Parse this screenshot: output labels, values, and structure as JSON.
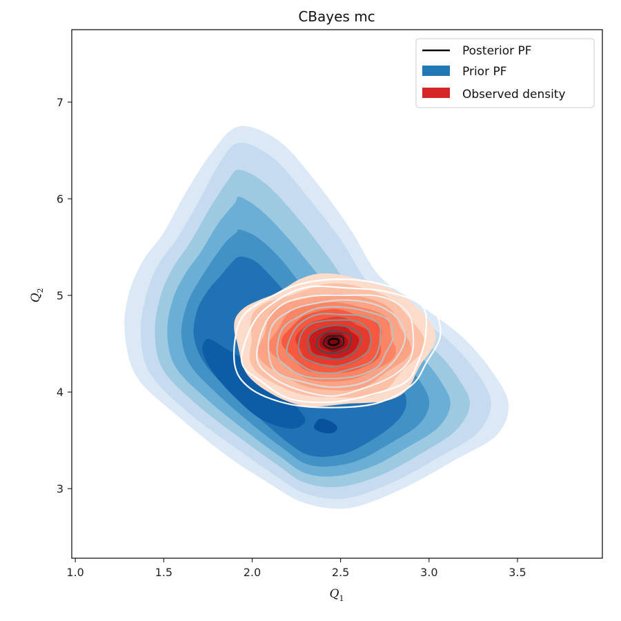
{
  "chart_data": {
    "type": "contour",
    "title": "CBayes mc",
    "xlabel": {
      "base": "Q",
      "sub": "1"
    },
    "ylabel": {
      "base": "Q",
      "sub": "2"
    },
    "xlim": [
      0.98,
      3.98
    ],
    "ylim": [
      2.28,
      7.75
    ],
    "xticks": [
      1.0,
      1.5,
      2.0,
      2.5,
      3.0,
      3.5
    ],
    "xtick_labels": [
      "1.0",
      "1.5",
      "2.0",
      "2.5",
      "3.0",
      "3.5"
    ],
    "yticks": [
      3,
      4,
      5,
      6,
      7
    ],
    "ytick_labels": [
      "3",
      "4",
      "5",
      "6",
      "7"
    ],
    "legend_position": "upper-right",
    "legend": [
      {
        "label": "Posterior PF",
        "kind": "line",
        "color": "#000000"
      },
      {
        "label": "Prior PF",
        "kind": "patch",
        "color": "#1f77b4"
      },
      {
        "label": "Observed density",
        "kind": "patch",
        "color": "#d62728"
      }
    ],
    "series": [
      {
        "name": "Prior PF",
        "style": "filled-contour",
        "colormap": "Blues",
        "colors": [
          "#dbe9f6",
          "#c6dbef",
          "#9ecae1",
          "#6baed6",
          "#4292c6",
          "#2171b5",
          "#0d5ca6",
          "#08519c"
        ],
        "levels": [
          [
            [
              1.93,
              6.75
            ],
            [
              2.15,
              6.6
            ],
            [
              2.35,
              6.2
            ],
            [
              2.55,
              5.7
            ],
            [
              2.72,
              5.2
            ],
            [
              2.95,
              4.9
            ],
            [
              3.2,
              4.55
            ],
            [
              3.38,
              4.15
            ],
            [
              3.45,
              3.85
            ],
            [
              3.38,
              3.55
            ],
            [
              3.15,
              3.3
            ],
            [
              2.85,
              3.0
            ],
            [
              2.55,
              2.8
            ],
            [
              2.3,
              2.85
            ],
            [
              2.1,
              3.05
            ],
            [
              1.85,
              3.35
            ],
            [
              1.58,
              3.75
            ],
            [
              1.35,
              4.15
            ],
            [
              1.28,
              4.6
            ],
            [
              1.3,
              5.0
            ],
            [
              1.38,
              5.35
            ],
            [
              1.5,
              5.65
            ],
            [
              1.62,
              6.05
            ],
            [
              1.78,
              6.5
            ]
          ],
          [
            [
              1.93,
              6.58
            ],
            [
              2.12,
              6.42
            ],
            [
              2.3,
              6.05
            ],
            [
              2.5,
              5.58
            ],
            [
              2.67,
              5.1
            ],
            [
              2.9,
              4.82
            ],
            [
              3.13,
              4.5
            ],
            [
              3.3,
              4.12
            ],
            [
              3.35,
              3.85
            ],
            [
              3.27,
              3.57
            ],
            [
              3.06,
              3.33
            ],
            [
              2.8,
              3.07
            ],
            [
              2.53,
              2.9
            ],
            [
              2.3,
              2.95
            ],
            [
              2.12,
              3.15
            ],
            [
              1.9,
              3.43
            ],
            [
              1.63,
              3.8
            ],
            [
              1.42,
              4.2
            ],
            [
              1.37,
              4.6
            ],
            [
              1.4,
              5.0
            ],
            [
              1.47,
              5.32
            ],
            [
              1.58,
              5.6
            ],
            [
              1.7,
              5.98
            ],
            [
              1.82,
              6.38
            ]
          ],
          [
            [
              1.93,
              6.3
            ],
            [
              2.08,
              6.15
            ],
            [
              2.25,
              5.82
            ],
            [
              2.43,
              5.4
            ],
            [
              2.6,
              4.97
            ],
            [
              2.82,
              4.7
            ],
            [
              3.04,
              4.42
            ],
            [
              3.18,
              4.1
            ],
            [
              3.23,
              3.86
            ],
            [
              3.15,
              3.6
            ],
            [
              2.97,
              3.38
            ],
            [
              2.74,
              3.15
            ],
            [
              2.5,
              3.02
            ],
            [
              2.3,
              3.06
            ],
            [
              2.14,
              3.25
            ],
            [
              1.95,
              3.5
            ],
            [
              1.7,
              3.85
            ],
            [
              1.5,
              4.22
            ],
            [
              1.45,
              4.6
            ],
            [
              1.48,
              4.98
            ],
            [
              1.55,
              5.28
            ],
            [
              1.65,
              5.55
            ],
            [
              1.76,
              5.9
            ],
            [
              1.86,
              6.18
            ]
          ],
          [
            [
              1.93,
              6.02
            ],
            [
              2.05,
              5.88
            ],
            [
              2.2,
              5.6
            ],
            [
              2.37,
              5.22
            ],
            [
              2.54,
              4.85
            ],
            [
              2.75,
              4.6
            ],
            [
              2.96,
              4.35
            ],
            [
              3.08,
              4.07
            ],
            [
              3.12,
              3.86
            ],
            [
              3.05,
              3.63
            ],
            [
              2.88,
              3.43
            ],
            [
              2.68,
              3.23
            ],
            [
              2.47,
              3.13
            ],
            [
              2.3,
              3.16
            ],
            [
              2.16,
              3.33
            ],
            [
              1.99,
              3.56
            ],
            [
              1.76,
              3.9
            ],
            [
              1.57,
              4.25
            ],
            [
              1.52,
              4.6
            ],
            [
              1.55,
              4.95
            ],
            [
              1.62,
              5.22
            ],
            [
              1.71,
              5.45
            ],
            [
              1.81,
              5.75
            ],
            [
              1.9,
              5.95
            ]
          ],
          [
            [
              1.93,
              5.68
            ],
            [
              2.03,
              5.6
            ],
            [
              2.16,
              5.38
            ],
            [
              2.31,
              5.04
            ],
            [
              2.47,
              4.74
            ],
            [
              2.67,
              4.52
            ],
            [
              2.86,
              4.3
            ],
            [
              2.97,
              4.05
            ],
            [
              3.0,
              3.86
            ],
            [
              2.94,
              3.66
            ],
            [
              2.79,
              3.48
            ],
            [
              2.61,
              3.3
            ],
            [
              2.44,
              3.23
            ],
            [
              2.3,
              3.26
            ],
            [
              2.18,
              3.41
            ],
            [
              2.03,
              3.62
            ],
            [
              1.82,
              3.95
            ],
            [
              1.65,
              4.28
            ],
            [
              1.6,
              4.6
            ],
            [
              1.63,
              4.9
            ],
            [
              1.69,
              5.12
            ],
            [
              1.77,
              5.35
            ],
            [
              1.85,
              5.55
            ],
            [
              1.91,
              5.65
            ]
          ],
          [
            [
              1.93,
              5.4
            ],
            [
              2.02,
              5.35
            ],
            [
              2.13,
              5.15
            ],
            [
              2.26,
              4.88
            ],
            [
              2.4,
              4.62
            ],
            [
              2.58,
              4.42
            ],
            [
              2.75,
              4.24
            ],
            [
              2.85,
              4.03
            ],
            [
              2.87,
              3.86
            ],
            [
              2.82,
              3.7
            ],
            [
              2.7,
              3.53
            ],
            [
              2.55,
              3.38
            ],
            [
              2.41,
              3.33
            ],
            [
              2.3,
              3.36
            ],
            [
              2.2,
              3.48
            ],
            [
              2.07,
              3.68
            ],
            [
              1.89,
              3.98
            ],
            [
              1.73,
              4.3
            ],
            [
              1.67,
              4.58
            ],
            [
              1.69,
              4.85
            ],
            [
              1.75,
              5.05
            ],
            [
              1.82,
              5.2
            ],
            [
              1.88,
              5.33
            ]
          ],
          [
            [
              1.75,
              4.55
            ],
            [
              1.85,
              4.45
            ],
            [
              2.0,
              4.28
            ],
            [
              2.15,
              4.05
            ],
            [
              2.25,
              3.85
            ],
            [
              2.3,
              3.7
            ],
            [
              2.22,
              3.62
            ],
            [
              2.05,
              3.72
            ],
            [
              1.9,
              3.95
            ],
            [
              1.78,
              4.2
            ],
            [
              1.72,
              4.42
            ]
          ],
          [
            [
              2.38,
              3.72
            ],
            [
              2.44,
              3.7
            ],
            [
              2.48,
              3.64
            ],
            [
              2.46,
              3.58
            ],
            [
              2.4,
              3.58
            ],
            [
              2.35,
              3.63
            ]
          ]
        ]
      },
      {
        "name": "Observed density",
        "style": "filled-contour",
        "colormap": "Reds",
        "colors": [
          "#fedccb",
          "#fcc0a6",
          "#fca385",
          "#fb8465",
          "#f6593f",
          "#e63a2c",
          "#cb1a1e",
          "#a50f15",
          "#7a0510"
        ],
        "center": [
          2.46,
          4.52
        ],
        "half_widths_x": [
          0.56,
          0.49,
          0.42,
          0.35,
          0.28,
          0.21,
          0.14,
          0.08,
          0.045
        ],
        "half_widths_y": [
          0.68,
          0.59,
          0.5,
          0.41,
          0.33,
          0.25,
          0.17,
          0.1,
          0.055
        ]
      },
      {
        "name": "Posterior PF",
        "style": "contour-lines",
        "center": [
          2.46,
          4.52
        ],
        "outer": [
          [
            1.9,
            4.3
          ],
          [
            1.95,
            4.75
          ],
          [
            2.1,
            5.0
          ],
          [
            2.3,
            5.13
          ],
          [
            2.55,
            5.15
          ],
          [
            2.8,
            5.1
          ],
          [
            3.0,
            4.92
          ],
          [
            3.05,
            4.6
          ],
          [
            3.0,
            4.3
          ],
          [
            2.9,
            4.07
          ],
          [
            2.7,
            3.9
          ],
          [
            2.45,
            3.82
          ],
          [
            2.2,
            3.88
          ],
          [
            2.0,
            4.05
          ]
        ],
        "scales": [
          1.0,
          0.9,
          0.78,
          0.67,
          0.56,
          0.46,
          0.36,
          0.26,
          0.17,
          0.1,
          0.05
        ],
        "line_colors": [
          "#ffffff",
          "#ffffff",
          "#f2f2f2",
          "#d8d8d8",
          "#bfbfbf",
          "#a6a6a6",
          "#8c8c8c",
          "#6e6e6e",
          "#4a4a4a",
          "#202020",
          "#000000"
        ]
      }
    ]
  }
}
